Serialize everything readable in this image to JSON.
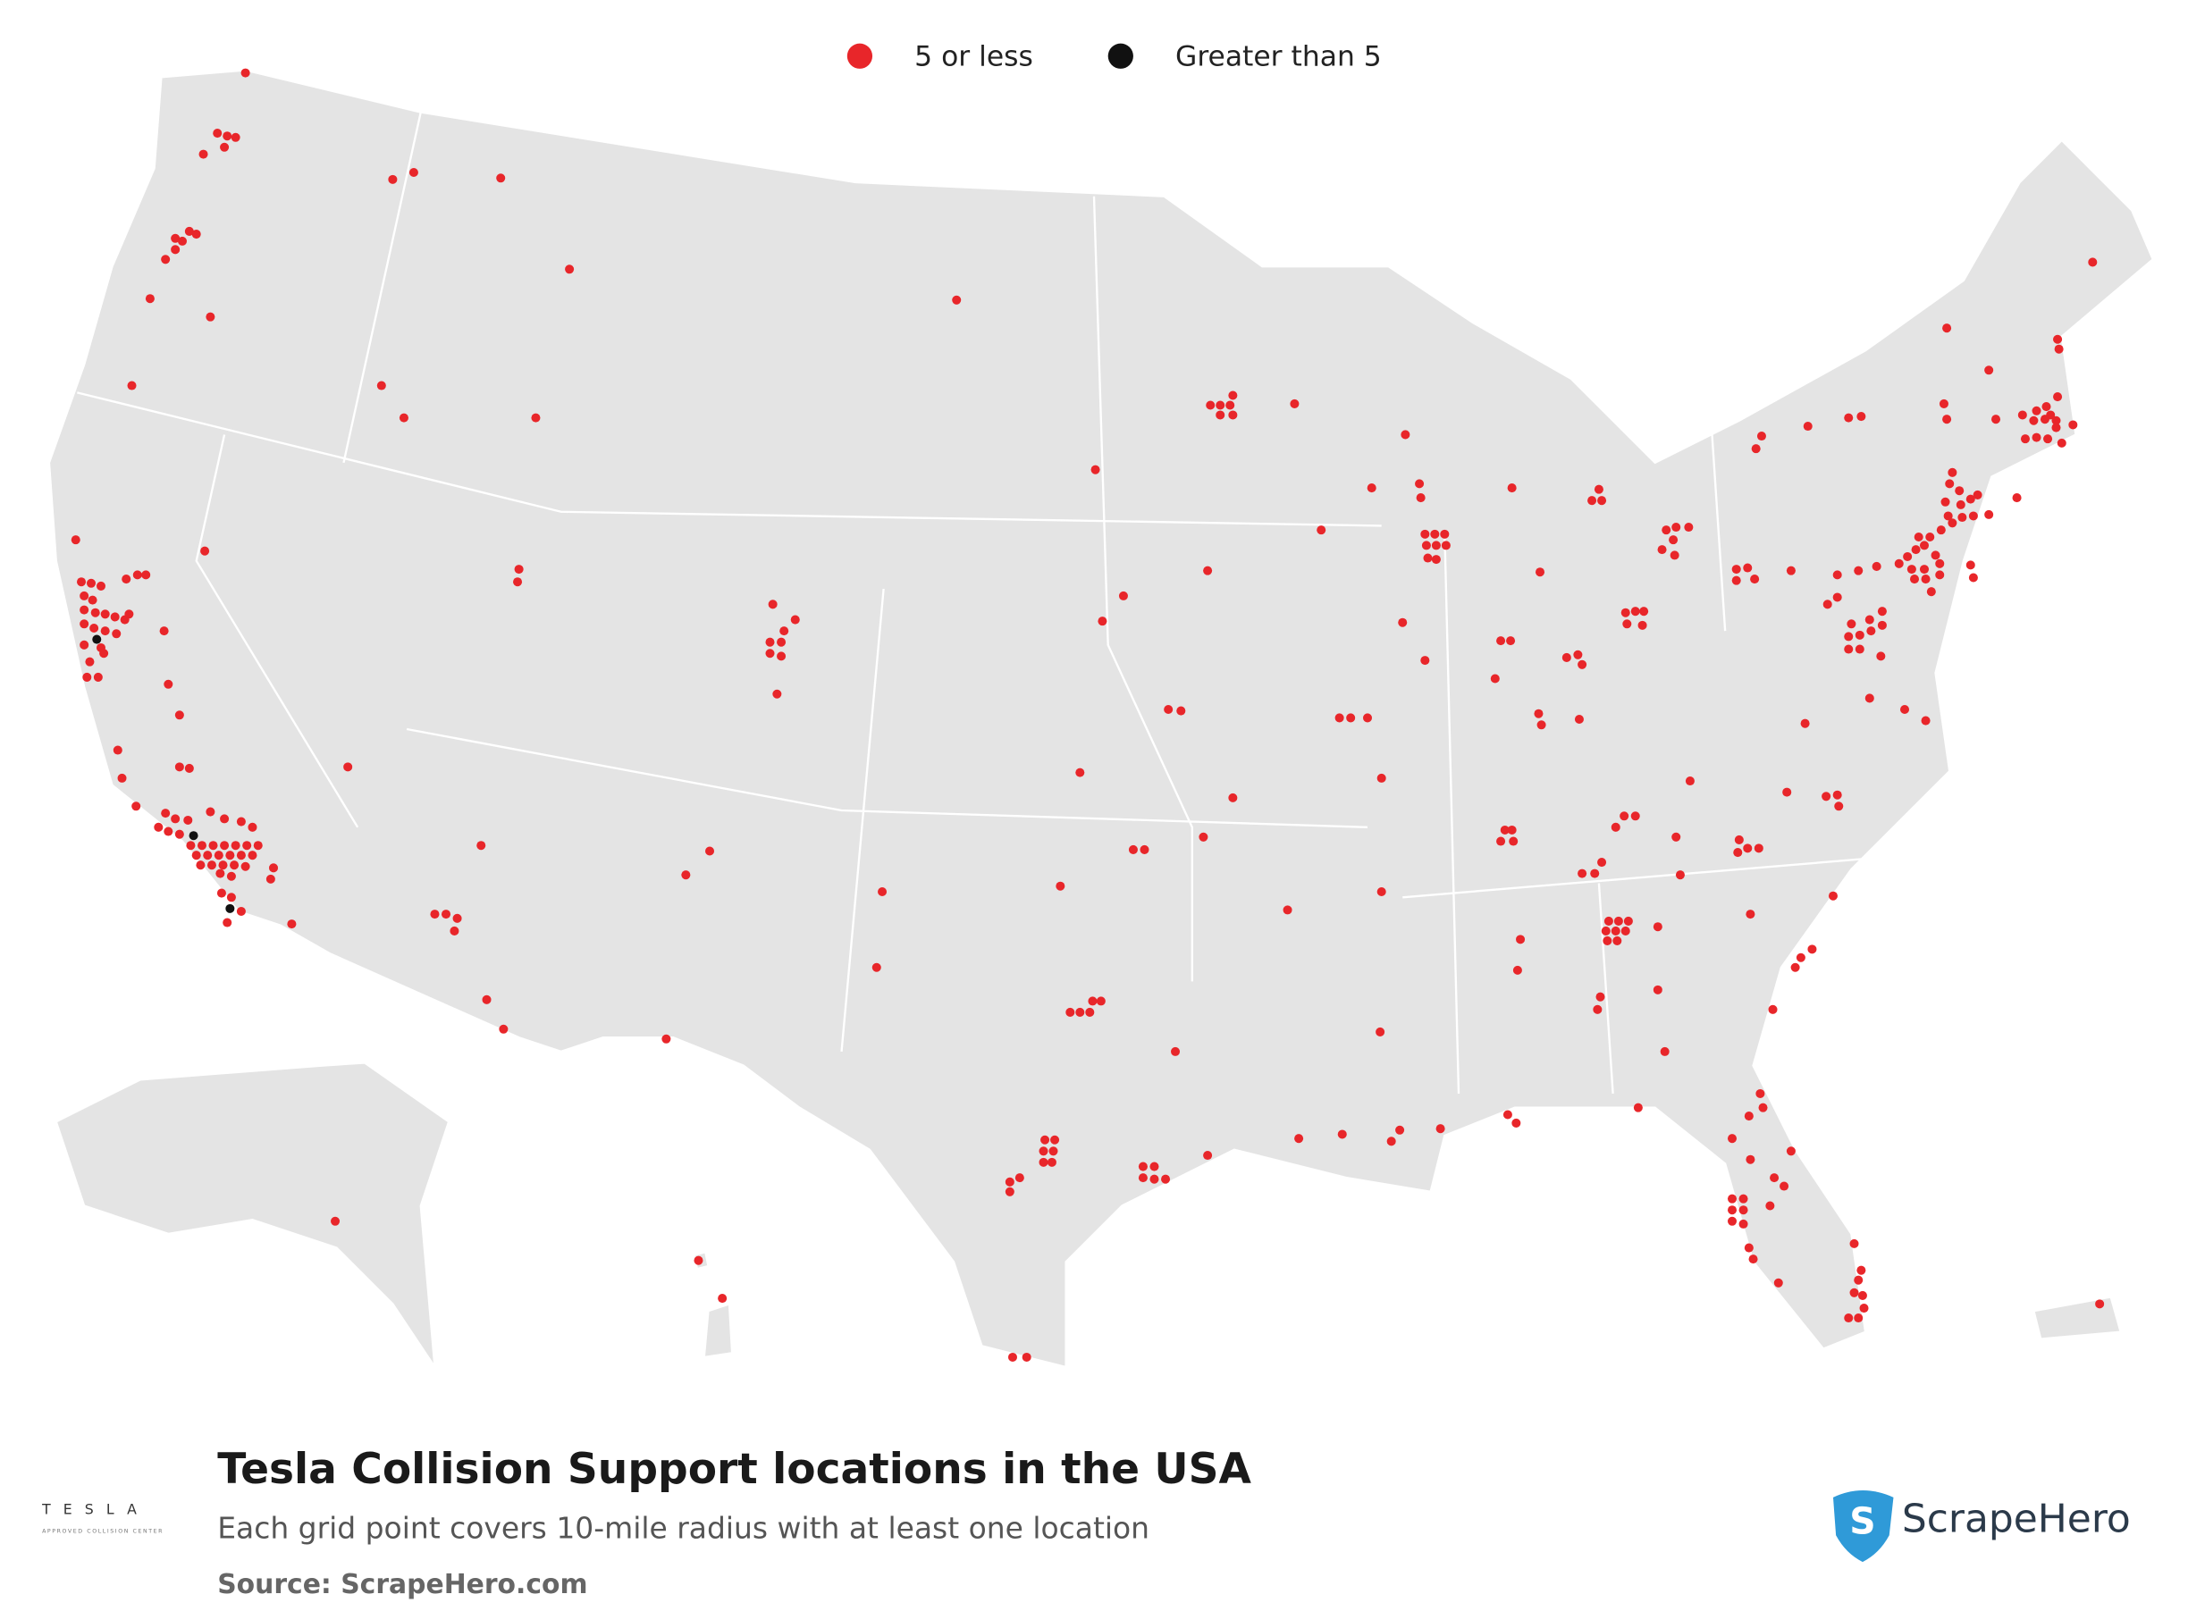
{
  "legend": {
    "items": [
      {
        "label": "5 or less",
        "color": "#e8262a"
      },
      {
        "label": "Greater than 5",
        "color": "#111111"
      }
    ]
  },
  "footer": {
    "title": "Tesla Collision Support locations in the USA",
    "subtitle": "Each grid point covers 10-mile radius with at least one location",
    "source": "Source: ScrapeHero.com",
    "brand": "ScrapeHero",
    "tesla_logo": "TESLA",
    "tesla_tagline": "APPROVED COLLISION CENTER"
  }
}
